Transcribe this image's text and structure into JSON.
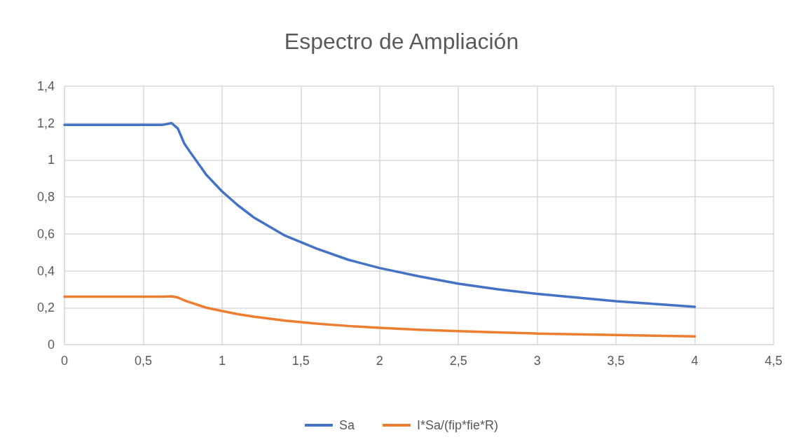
{
  "chart_data": {
    "type": "line",
    "title": "Espectro de Ampliación",
    "x": [
      0,
      0.1,
      0.2,
      0.3,
      0.4,
      0.5,
      0.62,
      0.68,
      0.72,
      0.76,
      0.8,
      0.9,
      1,
      1.1,
      1.2,
      1.4,
      1.6,
      1.8,
      2,
      2.25,
      2.5,
      2.75,
      3,
      3.25,
      3.5,
      3.75,
      4
    ],
    "series": [
      {
        "name": "Sa",
        "color": "#4472c4",
        "values": [
          1.19,
          1.19,
          1.19,
          1.19,
          1.19,
          1.19,
          1.19,
          1.2,
          1.17,
          1.09,
          1.04,
          0.92,
          0.83,
          0.755,
          0.69,
          0.59,
          0.52,
          0.46,
          0.415,
          0.37,
          0.33,
          0.3,
          0.275,
          0.255,
          0.235,
          0.22,
          0.205
        ]
      },
      {
        "name": "I*Sa/(fip*fie*R)",
        "color": "#ed7d31",
        "values": [
          0.26,
          0.26,
          0.26,
          0.26,
          0.26,
          0.26,
          0.26,
          0.262,
          0.255,
          0.24,
          0.228,
          0.2,
          0.182,
          0.165,
          0.152,
          0.13,
          0.114,
          0.101,
          0.091,
          0.081,
          0.073,
          0.066,
          0.06,
          0.056,
          0.052,
          0.048,
          0.045
        ]
      }
    ],
    "xlim": [
      0,
      4.5
    ],
    "xticks": [
      0,
      {
        "value": 0.5,
        "label": "0,5"
      },
      1,
      {
        "value": 1.5,
        "label": "1,5"
      },
      2,
      {
        "value": 2.5,
        "label": "2,5"
      },
      3,
      {
        "value": 3.5,
        "label": "3,5"
      },
      4,
      {
        "value": 4.5,
        "label": "4,5"
      }
    ],
    "ylim": [
      0,
      1.4
    ],
    "yticks": [
      0,
      {
        "value": 0.2,
        "label": "0,2"
      },
      {
        "value": 0.4,
        "label": "0,4"
      },
      {
        "value": 0.6,
        "label": "0,6"
      },
      {
        "value": 0.8,
        "label": "0,8"
      },
      1,
      {
        "value": 1.2,
        "label": "1,2"
      },
      {
        "value": 1.4,
        "label": "1,4"
      }
    ],
    "grid": true,
    "legend": "bottom",
    "marker": "none",
    "line_style": "solid"
  }
}
